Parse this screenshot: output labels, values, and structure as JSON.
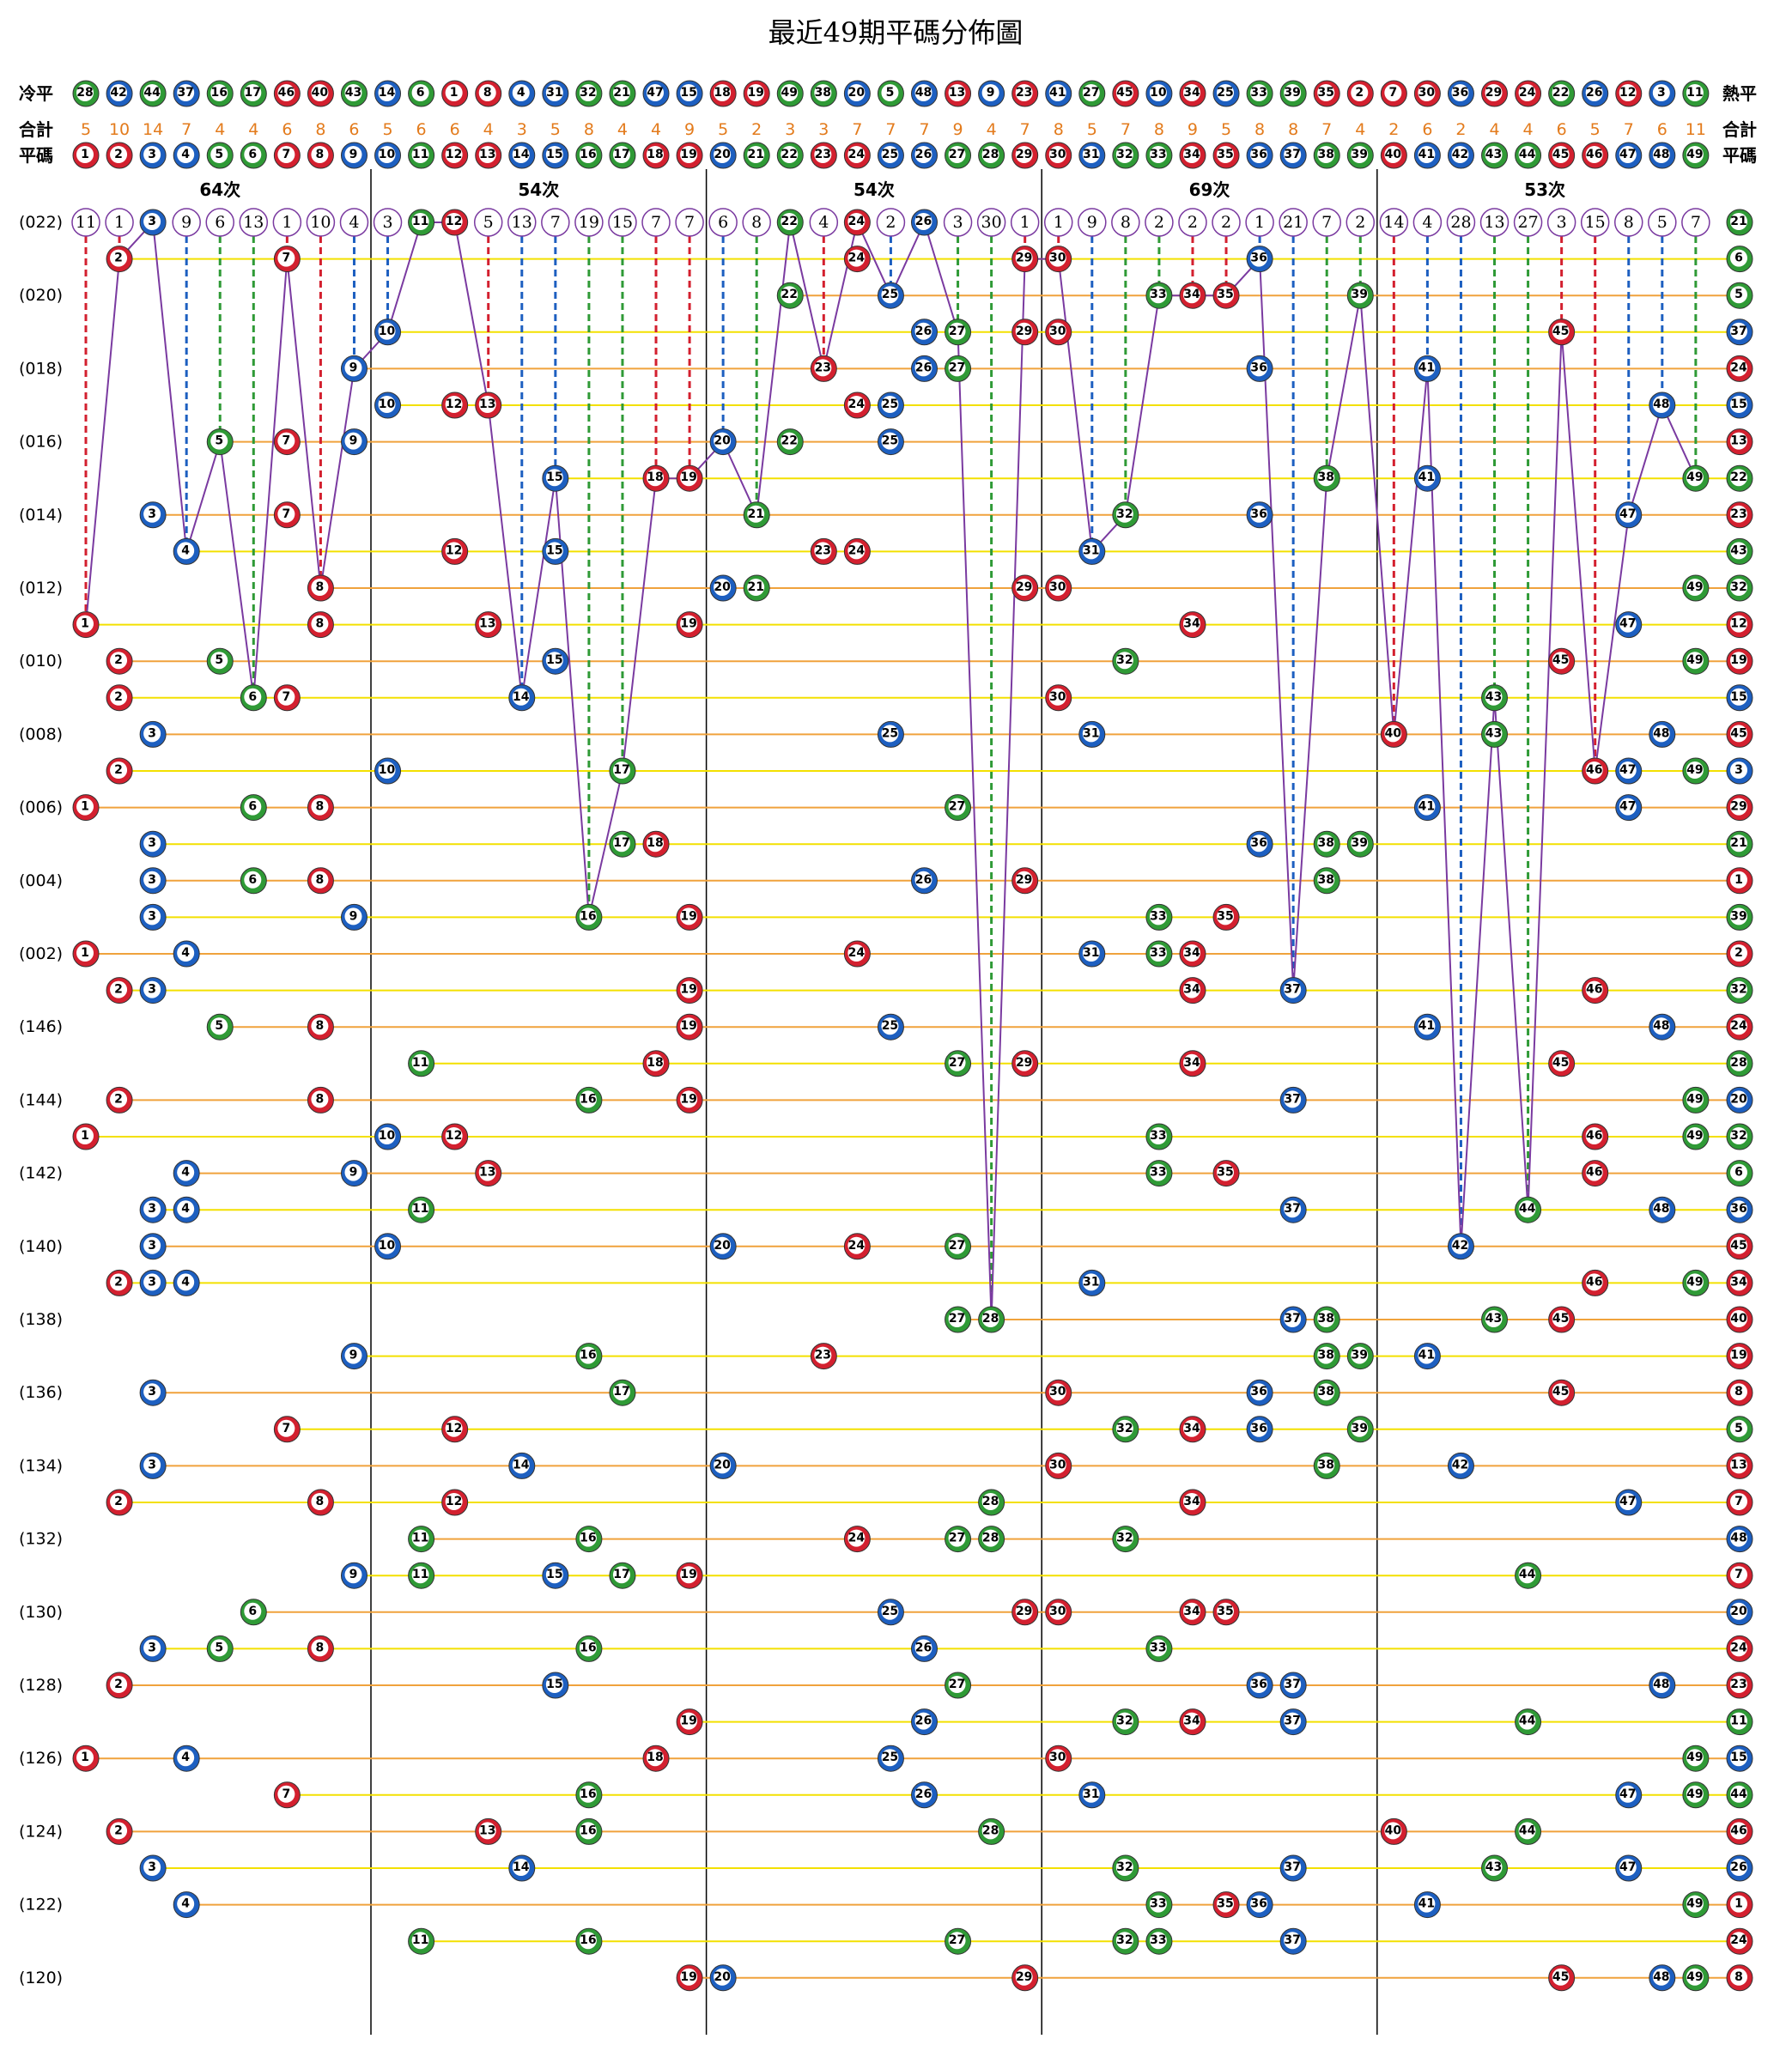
{
  "title": "最近49期平碼分佈圖",
  "colors": {
    "red": "#d3202f",
    "blue": "#1d5fc0",
    "green": "#2f9a36",
    "purple": "#7a3aa0",
    "orange": "#e37b1c"
  },
  "cold": {
    "label": "冷平",
    "right_label": "熱平",
    "numbers": [
      28,
      42,
      44,
      37,
      16,
      17,
      46,
      40,
      43,
      14,
      6,
      1,
      8,
      4,
      31,
      32,
      21,
      47,
      15,
      18,
      19,
      49,
      38,
      20,
      5,
      48,
      13,
      9,
      23,
      41,
      27,
      45,
      10,
      34,
      25,
      33,
      39,
      35,
      2,
      7,
      30,
      36,
      29,
      24,
      22,
      26,
      12,
      3,
      11
    ]
  },
  "totals": {
    "label": "合計",
    "right_label": "合計",
    "values": [
      5,
      10,
      14,
      7,
      4,
      4,
      6,
      8,
      6,
      5,
      6,
      6,
      4,
      3,
      5,
      8,
      4,
      4,
      9,
      5,
      2,
      3,
      3,
      7,
      7,
      7,
      9,
      4,
      7,
      8,
      5,
      7,
      8,
      9,
      5,
      8,
      8,
      7,
      4,
      2,
      6,
      2,
      4,
      4,
      6,
      5,
      7,
      6,
      11
    ]
  },
  "header": {
    "label": "平碼",
    "right_label": "平碼",
    "balls": [
      {
        "number": 1,
        "color": "red"
      },
      {
        "number": 2,
        "color": "red"
      },
      {
        "number": 3,
        "color": "blue"
      },
      {
        "number": 4,
        "color": "blue"
      },
      {
        "number": 5,
        "color": "green"
      },
      {
        "number": 6,
        "color": "green"
      },
      {
        "number": 7,
        "color": "red"
      },
      {
        "number": 8,
        "color": "red"
      },
      {
        "number": 9,
        "color": "blue"
      },
      {
        "number": 10,
        "color": "blue"
      },
      {
        "number": 11,
        "color": "green"
      },
      {
        "number": 12,
        "color": "red"
      },
      {
        "number": 13,
        "color": "red"
      },
      {
        "number": 14,
        "color": "blue"
      },
      {
        "number": 15,
        "color": "blue"
      },
      {
        "number": 16,
        "color": "green"
      },
      {
        "number": 17,
        "color": "green"
      },
      {
        "number": 18,
        "color": "red"
      },
      {
        "number": 19,
        "color": "red"
      },
      {
        "number": 20,
        "color": "blue"
      },
      {
        "number": 21,
        "color": "green"
      },
      {
        "number": 22,
        "color": "green"
      },
      {
        "number": 23,
        "color": "red"
      },
      {
        "number": 24,
        "color": "red"
      },
      {
        "number": 25,
        "color": "blue"
      },
      {
        "number": 26,
        "color": "blue"
      },
      {
        "number": 27,
        "color": "green"
      },
      {
        "number": 28,
        "color": "green"
      },
      {
        "number": 29,
        "color": "red"
      },
      {
        "number": 30,
        "color": "red"
      },
      {
        "number": 31,
        "color": "blue"
      },
      {
        "number": 32,
        "color": "green"
      },
      {
        "number": 33,
        "color": "green"
      },
      {
        "number": 34,
        "color": "red"
      },
      {
        "number": 35,
        "color": "red"
      },
      {
        "number": 36,
        "color": "blue"
      },
      {
        "number": 37,
        "color": "blue"
      },
      {
        "number": 38,
        "color": "green"
      },
      {
        "number": 39,
        "color": "green"
      },
      {
        "number": 40,
        "color": "red"
      },
      {
        "number": 41,
        "color": "blue"
      },
      {
        "number": 42,
        "color": "blue"
      },
      {
        "number": 43,
        "color": "green"
      },
      {
        "number": 44,
        "color": "green"
      },
      {
        "number": 45,
        "color": "red"
      },
      {
        "number": 46,
        "color": "red"
      },
      {
        "number": 47,
        "color": "blue"
      },
      {
        "number": 48,
        "color": "blue"
      },
      {
        "number": 49,
        "color": "green"
      }
    ]
  },
  "groups": [
    "64次",
    "54次",
    "54次",
    "69次",
    "53次"
  ],
  "omission": [
    11,
    1,
    null,
    9,
    6,
    13,
    1,
    10,
    4,
    3,
    null,
    null,
    5,
    13,
    7,
    19,
    15,
    7,
    7,
    6,
    8,
    null,
    4,
    null,
    2,
    null,
    3,
    30,
    1,
    1,
    9,
    8,
    2,
    2,
    2,
    1,
    21,
    7,
    2,
    14,
    4,
    28,
    13,
    27,
    3,
    15,
    8,
    5,
    7
  ],
  "rows": [
    {
      "period": "(022)",
      "numbers": [
        3,
        11,
        12,
        22,
        24,
        26
      ],
      "special": 21
    },
    {
      "period": null,
      "numbers": [
        2,
        7,
        24,
        29,
        30,
        36
      ],
      "special": 6
    },
    {
      "period": "(020)",
      "numbers": [
        22,
        25,
        33,
        34,
        35,
        39
      ],
      "special": 5
    },
    {
      "period": null,
      "numbers": [
        10,
        26,
        27,
        29,
        30,
        45
      ],
      "special": 37
    },
    {
      "period": "(018)",
      "numbers": [
        9,
        23,
        26,
        27,
        36,
        41
      ],
      "special": 24
    },
    {
      "period": null,
      "numbers": [
        10,
        12,
        13,
        24,
        25,
        48
      ],
      "special": 15
    },
    {
      "period": "(016)",
      "numbers": [
        5,
        7,
        9,
        20,
        22,
        25
      ],
      "special": 13
    },
    {
      "period": null,
      "numbers": [
        15,
        18,
        19,
        38,
        41,
        49
      ],
      "special": 22
    },
    {
      "period": "(014)",
      "numbers": [
        3,
        7,
        21,
        32,
        36,
        47
      ],
      "special": 23
    },
    {
      "period": null,
      "numbers": [
        4,
        12,
        15,
        23,
        24,
        31
      ],
      "special": 43
    },
    {
      "period": "(012)",
      "numbers": [
        8,
        20,
        21,
        29,
        30,
        49
      ],
      "special": 32
    },
    {
      "period": null,
      "numbers": [
        1,
        8,
        13,
        19,
        34,
        47
      ],
      "special": 12
    },
    {
      "period": "(010)",
      "numbers": [
        2,
        5,
        15,
        32,
        45,
        49
      ],
      "special": 19
    },
    {
      "period": null,
      "numbers": [
        2,
        6,
        7,
        14,
        30,
        43
      ],
      "special": 15
    },
    {
      "period": "(008)",
      "numbers": [
        3,
        25,
        31,
        40,
        43,
        48
      ],
      "special": 45
    },
    {
      "period": null,
      "numbers": [
        2,
        10,
        17,
        46,
        47,
        49
      ],
      "special": 3
    },
    {
      "period": "(006)",
      "numbers": [
        1,
        6,
        8,
        27,
        41,
        47
      ],
      "special": 29
    },
    {
      "period": null,
      "numbers": [
        3,
        17,
        18,
        36,
        38,
        39
      ],
      "special": 21
    },
    {
      "period": "(004)",
      "numbers": [
        3,
        6,
        8,
        26,
        29,
        38
      ],
      "special": 1
    },
    {
      "period": null,
      "numbers": [
        3,
        9,
        16,
        19,
        33,
        35
      ],
      "special": 39
    },
    {
      "period": "(002)",
      "numbers": [
        1,
        4,
        24,
        31,
        33,
        34
      ],
      "special": 2
    },
    {
      "period": null,
      "numbers": [
        2,
        3,
        19,
        34,
        37,
        46
      ],
      "special": 32
    },
    {
      "period": "(146)",
      "numbers": [
        5,
        8,
        19,
        25,
        41,
        48
      ],
      "special": 24
    },
    {
      "period": null,
      "numbers": [
        11,
        18,
        27,
        29,
        34,
        45
      ],
      "special": 28
    },
    {
      "period": "(144)",
      "numbers": [
        2,
        8,
        16,
        19,
        37,
        49
      ],
      "special": 20
    },
    {
      "period": null,
      "numbers": [
        1,
        10,
        12,
        33,
        46,
        49
      ],
      "special": 32
    },
    {
      "period": "(142)",
      "numbers": [
        4,
        9,
        13,
        33,
        35,
        46
      ],
      "special": 6
    },
    {
      "period": null,
      "numbers": [
        3,
        4,
        11,
        37,
        44,
        48
      ],
      "special": 36
    },
    {
      "period": "(140)",
      "numbers": [
        3,
        10,
        20,
        24,
        27,
        42
      ],
      "special": 45
    },
    {
      "period": null,
      "numbers": [
        2,
        3,
        4,
        31,
        46,
        49
      ],
      "special": 34
    },
    {
      "period": "(138)",
      "numbers": [
        27,
        28,
        37,
        38,
        43,
        45
      ],
      "special": 40
    },
    {
      "period": null,
      "numbers": [
        9,
        16,
        23,
        38,
        39,
        41
      ],
      "special": 19
    },
    {
      "period": "(136)",
      "numbers": [
        3,
        17,
        30,
        36,
        38,
        45
      ],
      "special": 8
    },
    {
      "period": null,
      "numbers": [
        7,
        12,
        32,
        34,
        36,
        39
      ],
      "special": 5
    },
    {
      "period": "(134)",
      "numbers": [
        3,
        14,
        20,
        30,
        38,
        42
      ],
      "special": 13
    },
    {
      "period": null,
      "numbers": [
        2,
        8,
        12,
        28,
        34,
        47
      ],
      "special": 7
    },
    {
      "period": "(132)",
      "numbers": [
        11,
        16,
        24,
        27,
        28,
        32
      ],
      "special": 48
    },
    {
      "period": null,
      "numbers": [
        9,
        11,
        15,
        17,
        19,
        44
      ],
      "special": 7
    },
    {
      "period": "(130)",
      "numbers": [
        6,
        25,
        29,
        30,
        34,
        35
      ],
      "special": 20
    },
    {
      "period": null,
      "numbers": [
        3,
        5,
        8,
        16,
        26,
        33
      ],
      "special": 24
    },
    {
      "period": "(128)",
      "numbers": [
        2,
        15,
        27,
        36,
        37,
        48
      ],
      "special": 23
    },
    {
      "period": null,
      "numbers": [
        19,
        26,
        32,
        34,
        37,
        44
      ],
      "special": 11
    },
    {
      "period": "(126)",
      "numbers": [
        1,
        4,
        18,
        25,
        30,
        49
      ],
      "special": 15
    },
    {
      "period": null,
      "numbers": [
        7,
        16,
        26,
        31,
        47,
        49
      ],
      "special": 44
    },
    {
      "period": "(124)",
      "numbers": [
        2,
        13,
        16,
        28,
        40,
        44
      ],
      "special": 46
    },
    {
      "period": null,
      "numbers": [
        3,
        14,
        32,
        37,
        43,
        47
      ],
      "special": 26
    },
    {
      "period": "(122)",
      "numbers": [
        4,
        33,
        35,
        36,
        41,
        49
      ],
      "special": 1
    },
    {
      "period": null,
      "numbers": [
        11,
        16,
        27,
        32,
        33,
        37
      ],
      "special": 24
    },
    {
      "period": "(120)",
      "numbers": [
        19,
        20,
        29,
        45,
        48,
        49
      ],
      "special": 8
    }
  ]
}
